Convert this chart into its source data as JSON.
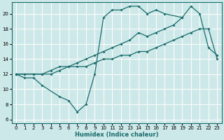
{
  "xlabel": "Humidex (Indice chaleur)",
  "bg_color": "#cce8e8",
  "grid_color": "#ffffff",
  "line_color": "#1a6b6b",
  "xlim": [
    -0.5,
    23.5
  ],
  "ylim": [
    5.5,
    21.5
  ],
  "xticks": [
    0,
    1,
    2,
    3,
    4,
    5,
    6,
    7,
    8,
    9,
    10,
    11,
    12,
    13,
    14,
    15,
    16,
    17,
    18,
    19,
    20,
    21,
    22,
    23
  ],
  "yticks": [
    6,
    8,
    10,
    12,
    14,
    16,
    18,
    20
  ],
  "line_spike_x": [
    0,
    1,
    2,
    3,
    5,
    6,
    7,
    8,
    9,
    10,
    11,
    12,
    13,
    14,
    15,
    16,
    17,
    19
  ],
  "line_spike_y": [
    12,
    11.5,
    11.5,
    10.5,
    9,
    8.5,
    7,
    8,
    12,
    19.5,
    20.5,
    20.5,
    21,
    21,
    20,
    20.5,
    20,
    19.5
  ],
  "line_mid_x": [
    0,
    1,
    2,
    3,
    4,
    5,
    6,
    7,
    8,
    9,
    10,
    11,
    12,
    13,
    14,
    15,
    16,
    17,
    18,
    19,
    20,
    21,
    22,
    23
  ],
  "line_mid_y": [
    12,
    12,
    12,
    12,
    12.5,
    13,
    13,
    13.5,
    14,
    14.5,
    15,
    15.5,
    16,
    16.5,
    17.5,
    17,
    17.5,
    18,
    18.5,
    19.5,
    21,
    20,
    15.5,
    14.5
  ],
  "line_low_x": [
    0,
    1,
    2,
    3,
    4,
    5,
    6,
    7,
    8,
    9,
    10,
    11,
    12,
    13,
    14,
    15,
    16,
    17,
    18,
    19,
    20,
    21,
    22,
    23
  ],
  "line_low_y": [
    12,
    12,
    12,
    12,
    12,
    12.5,
    13,
    13,
    13,
    13.5,
    14,
    14,
    14.5,
    14.5,
    15,
    15,
    15.5,
    16,
    16.5,
    17,
    17.5,
    18,
    18,
    14
  ]
}
